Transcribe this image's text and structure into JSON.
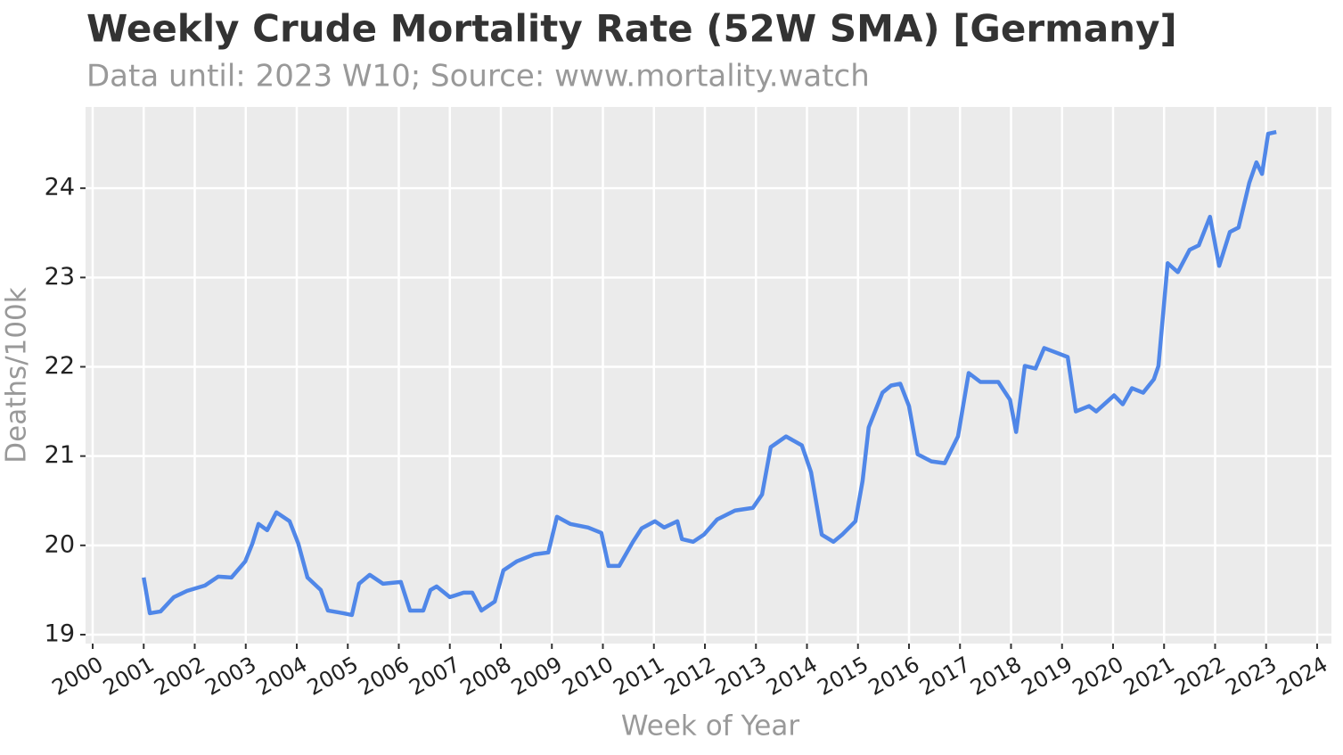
{
  "chart_data": {
    "type": "line",
    "title": "Weekly Crude Mortality Rate (52W SMA) [Germany]",
    "subtitle": "Data until: 2023 W10; Source: www.mortality.watch",
    "x_label": "Week of Year",
    "y_label": "Deaths/100k",
    "x": [
      2001.0,
      2001.12,
      2001.33,
      2001.59,
      2001.85,
      2002.2,
      2002.46,
      2002.72,
      2002.99,
      2003.13,
      2003.25,
      2003.42,
      2003.6,
      2003.86,
      2004.03,
      2004.21,
      2004.47,
      2004.61,
      2004.91,
      2005.08,
      2005.22,
      2005.43,
      2005.69,
      2006.04,
      2006.22,
      2006.48,
      2006.62,
      2006.74,
      2007.0,
      2007.27,
      2007.44,
      2007.62,
      2007.88,
      2008.05,
      2008.31,
      2008.66,
      2008.93,
      2009.1,
      2009.36,
      2009.71,
      2009.97,
      2010.11,
      2010.32,
      2010.59,
      2010.76,
      2011.02,
      2011.2,
      2011.46,
      2011.55,
      2011.77,
      2011.98,
      2012.24,
      2012.59,
      2012.94,
      2013.12,
      2013.29,
      2013.59,
      2013.9,
      2014.08,
      2014.29,
      2014.52,
      2014.69,
      2014.95,
      2015.09,
      2015.21,
      2015.48,
      2015.65,
      2015.83,
      2016.0,
      2016.17,
      2016.44,
      2016.7,
      2016.96,
      2017.17,
      2017.4,
      2017.75,
      2017.98,
      2018.1,
      2018.27,
      2018.48,
      2018.65,
      2018.88,
      2019.11,
      2019.27,
      2019.53,
      2019.67,
      2020.02,
      2020.19,
      2020.37,
      2020.59,
      2020.8,
      2020.89,
      2021.07,
      2021.27,
      2021.5,
      2021.68,
      2021.9,
      2022.08,
      2022.29,
      2022.46,
      2022.67,
      2022.81,
      2022.92,
      2023.04,
      2023.2
    ],
    "series": [
      {
        "name": "Germany",
        "color": "#5087e8",
        "values": [
          19.64,
          19.24,
          19.26,
          19.42,
          19.49,
          19.55,
          19.65,
          19.64,
          19.82,
          20.02,
          20.24,
          20.17,
          20.37,
          20.27,
          20.02,
          19.64,
          19.5,
          19.27,
          19.24,
          19.22,
          19.57,
          19.67,
          19.57,
          19.59,
          19.27,
          19.27,
          19.5,
          19.54,
          19.42,
          19.47,
          19.47,
          19.27,
          19.37,
          19.72,
          19.82,
          19.9,
          19.92,
          20.32,
          20.24,
          20.2,
          20.14,
          19.77,
          19.77,
          20.04,
          20.19,
          20.27,
          20.2,
          20.27,
          20.07,
          20.04,
          20.12,
          20.29,
          20.39,
          20.42,
          20.57,
          21.1,
          21.22,
          21.12,
          20.82,
          20.12,
          20.04,
          20.12,
          20.27,
          20.72,
          21.32,
          21.71,
          21.79,
          21.81,
          21.56,
          21.02,
          20.94,
          20.92,
          21.22,
          21.93,
          21.83,
          21.83,
          21.63,
          21.27,
          22.01,
          21.98,
          22.21,
          22.16,
          22.11,
          21.5,
          21.56,
          21.5,
          21.68,
          21.58,
          21.76,
          21.71,
          21.86,
          22.01,
          23.16,
          23.06,
          23.31,
          23.36,
          23.68,
          23.13,
          23.51,
          23.56,
          24.06,
          24.29,
          24.16,
          24.61,
          24.63
        ]
      }
    ],
    "xlim": [
      1999.86,
      2024.28
    ],
    "xticks": [
      2000,
      2001,
      2002,
      2003,
      2004,
      2005,
      2006,
      2007,
      2008,
      2009,
      2010,
      2011,
      2012,
      2013,
      2014,
      2015,
      2016,
      2017,
      2018,
      2019,
      2020,
      2021,
      2022,
      2023,
      2024
    ],
    "ylim": [
      18.9,
      24.91
    ],
    "yticks": [
      19,
      20,
      21,
      22,
      23,
      24
    ],
    "grid": true
  }
}
